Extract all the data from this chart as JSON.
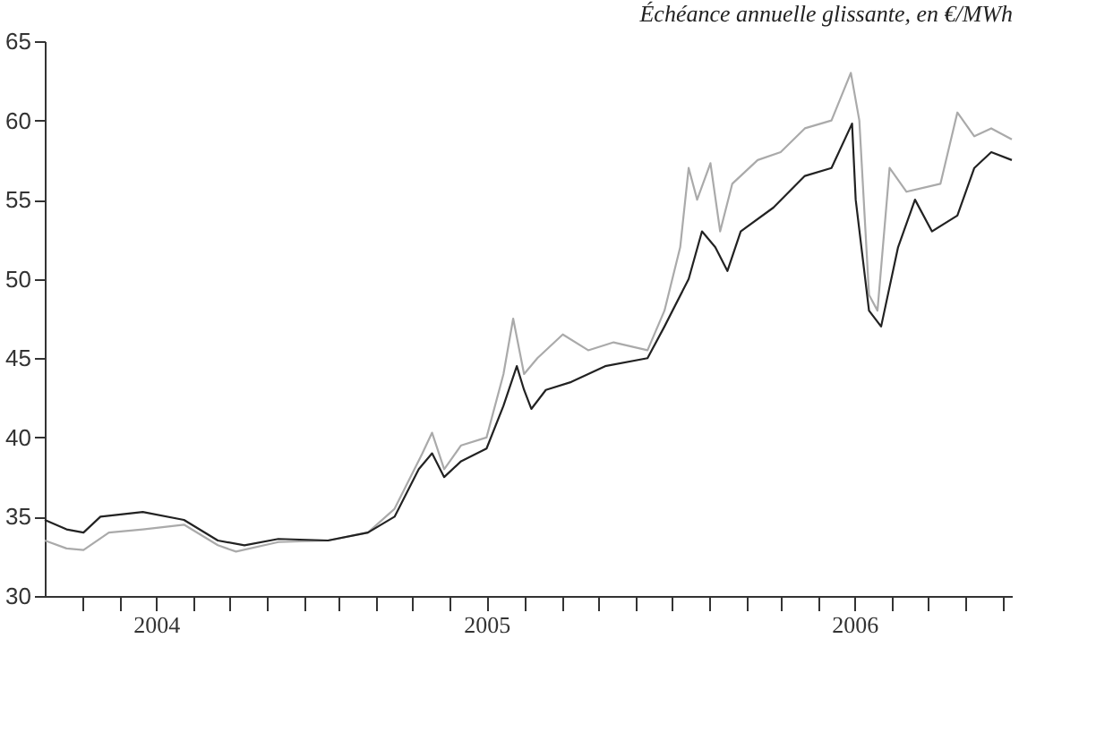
{
  "chart_data": {
    "type": "line",
    "annotations": [
      "Échéance annuelle glissante, en €/MWh"
    ],
    "xlim": [
      "2004-07-01",
      "2006-09-08"
    ],
    "xticks": [
      {
        "value": "2004-08-01",
        "label": null
      },
      {
        "value": "2004-09-01",
        "label": null
      },
      {
        "value": "2004-10-01",
        "label": "2004"
      },
      {
        "value": "2004-11-01",
        "label": null
      },
      {
        "value": "2004-12-01",
        "label": null
      },
      {
        "value": "2005-01-01",
        "label": null
      },
      {
        "value": "2005-02-01",
        "label": null
      },
      {
        "value": "2005-03-01",
        "label": null
      },
      {
        "value": "2005-04-01",
        "label": null
      },
      {
        "value": "2005-05-01",
        "label": null
      },
      {
        "value": "2005-06-01",
        "label": null
      },
      {
        "value": "2005-07-01",
        "label": "2005"
      },
      {
        "value": "2005-08-01",
        "label": null
      },
      {
        "value": "2005-09-01",
        "label": null
      },
      {
        "value": "2005-10-01",
        "label": null
      },
      {
        "value": "2005-11-01",
        "label": null
      },
      {
        "value": "2005-12-01",
        "label": null
      },
      {
        "value": "2006-01-01",
        "label": null
      },
      {
        "value": "2006-02-01",
        "label": null
      },
      {
        "value": "2006-03-01",
        "label": null
      },
      {
        "value": "2006-04-01",
        "label": null
      },
      {
        "value": "2006-05-01",
        "label": "2006"
      },
      {
        "value": "2006-06-01",
        "label": null
      },
      {
        "value": "2006-07-01",
        "label": null
      },
      {
        "value": "2006-08-01",
        "label": null
      },
      {
        "value": "2006-09-01",
        "label": null
      }
    ],
    "ylim": [
      30,
      65
    ],
    "yticks": [
      30,
      35,
      40,
      45,
      50,
      55,
      60,
      65
    ],
    "grid": false,
    "legend": false,
    "marker": "none",
    "line_style": "solid",
    "series": [
      {
        "color": "#aaaaaa",
        "x": [
          "2004-07-01",
          "2004-07-19",
          "2004-08-02",
          "2004-08-23",
          "2004-09-20",
          "2004-10-24",
          "2004-11-21",
          "2004-12-06",
          "2005-01-10",
          "2005-02-20",
          "2005-03-25",
          "2005-04-16",
          "2005-05-09",
          "2005-05-17",
          "2005-05-27",
          "2005-06-10",
          "2005-07-01",
          "2005-07-15",
          "2005-07-23",
          "2005-08-01",
          "2005-08-12",
          "2005-09-02",
          "2005-09-23",
          "2005-10-14",
          "2005-11-11",
          "2005-11-25",
          "2005-12-08",
          "2005-12-15",
          "2005-12-22",
          "2006-01-02",
          "2006-01-10",
          "2006-01-20",
          "2006-02-10",
          "2006-03-01",
          "2006-03-21",
          "2006-04-12",
          "2006-04-28",
          "2006-05-05",
          "2006-05-13",
          "2006-05-20",
          "2006-05-30",
          "2006-06-13",
          "2006-07-11",
          "2006-07-25",
          "2006-08-08",
          "2006-08-22",
          "2006-09-08"
        ],
        "values": [
          33.5,
          33.0,
          32.9,
          34.0,
          34.2,
          34.5,
          33.2,
          32.8,
          33.4,
          33.5,
          34.0,
          35.5,
          39.0,
          40.3,
          38.0,
          39.5,
          40.0,
          44.0,
          47.5,
          44.0,
          45.0,
          46.5,
          45.5,
          46.0,
          45.5,
          48.0,
          52.0,
          57.0,
          55.0,
          57.3,
          53.0,
          56.0,
          57.5,
          58.0,
          59.5,
          60.0,
          63.0,
          60.0,
          49.0,
          48.0,
          57.0,
          55.5,
          56.0,
          60.5,
          59.0,
          59.5,
          58.8
        ]
      },
      {
        "color": "#222222",
        "x": [
          "2004-07-01",
          "2004-07-19",
          "2004-08-02",
          "2004-08-16",
          "2004-09-20",
          "2004-10-24",
          "2004-11-21",
          "2004-12-13",
          "2005-01-10",
          "2005-02-20",
          "2005-03-25",
          "2005-04-16",
          "2005-05-06",
          "2005-05-17",
          "2005-05-27",
          "2005-06-10",
          "2005-07-01",
          "2005-07-15",
          "2005-07-26",
          "2005-08-01",
          "2005-08-07",
          "2005-08-19",
          "2005-09-09",
          "2005-10-07",
          "2005-11-11",
          "2005-11-25",
          "2005-12-15",
          "2005-12-26",
          "2006-01-06",
          "2006-01-16",
          "2006-01-27",
          "2006-02-23",
          "2006-03-21",
          "2006-04-12",
          "2006-04-29",
          "2006-05-02",
          "2006-05-13",
          "2006-05-23",
          "2006-06-06",
          "2006-06-20",
          "2006-07-04",
          "2006-07-25",
          "2006-08-08",
          "2006-08-22",
          "2006-09-08"
        ],
        "values": [
          34.8,
          34.2,
          34.0,
          35.0,
          35.3,
          34.8,
          33.5,
          33.2,
          33.6,
          33.5,
          34.0,
          35.0,
          38.0,
          39.0,
          37.5,
          38.5,
          39.3,
          42.0,
          44.5,
          43.0,
          41.8,
          43.0,
          43.5,
          44.5,
          45.0,
          47.0,
          50.0,
          53.0,
          52.0,
          50.5,
          53.0,
          54.5,
          56.5,
          57.0,
          59.8,
          55.0,
          48.0,
          47.0,
          52.0,
          55.0,
          53.0,
          54.0,
          57.0,
          58.0,
          57.5
        ]
      }
    ]
  }
}
